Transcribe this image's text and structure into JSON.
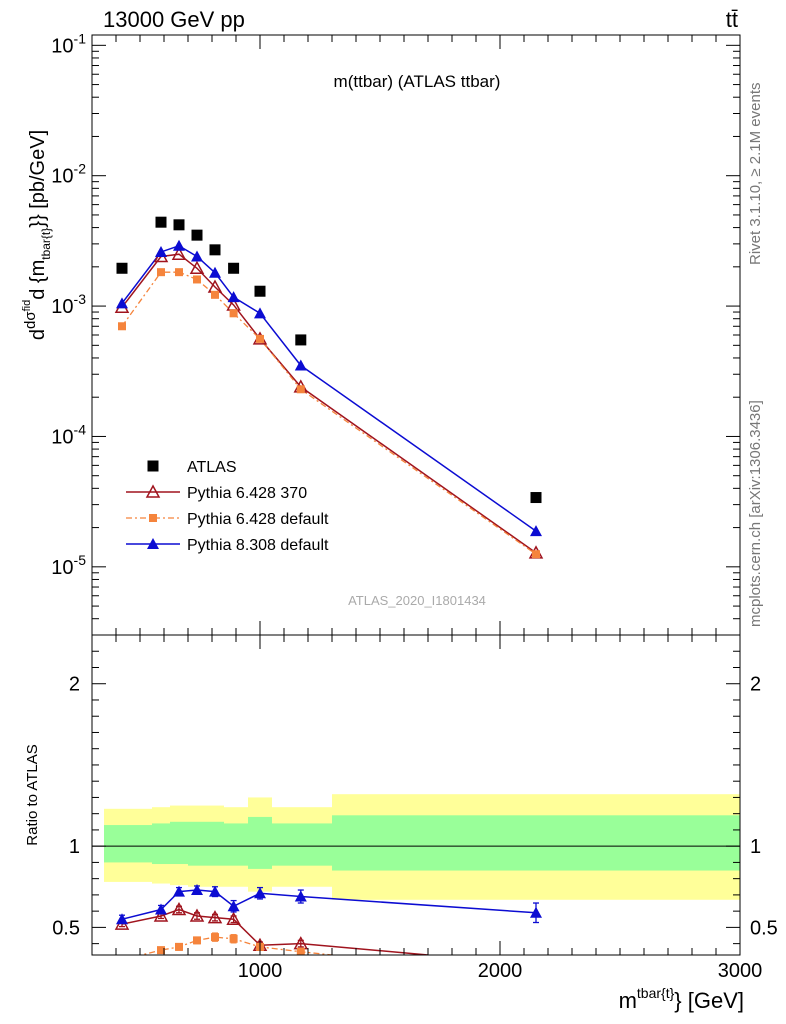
{
  "header": {
    "left": "13000 GeV pp",
    "right": "tt̄"
  },
  "side": {
    "rivet": "Rivet 3.1.10, ≥ 2.1M events",
    "site": "mcplots.cern.ch [arXiv:1306.3436]"
  },
  "plot_title": "m(ttbar) (ATLAS ttbar)",
  "watermark": "ATLAS_2020_I1801434",
  "colors": {
    "data": "#000000",
    "py6_370": "#a0141e",
    "py6_default": "#f5843c",
    "py8": "#0c0cd2",
    "band_outer": "#ffff99",
    "band_inner": "#99ff99"
  },
  "chart_data": [
    {
      "type": "scatter",
      "name": "main",
      "ylabel": "dσ^fid / d{m^{tbar{t}}} [pb/GeV]",
      "yscale": "log",
      "ylim": [
        3e-06,
        0.12
      ],
      "xlim": [
        300,
        3000
      ],
      "y_ticks": [
        {
          "value": 0.1,
          "label": "10^-1"
        },
        {
          "value": 0.01,
          "label": "10^-2"
        },
        {
          "value": 0.001,
          "label": "10^-3"
        },
        {
          "value": 0.0001,
          "label": "10^-4"
        },
        {
          "value": 1e-05,
          "label": "10^-5"
        }
      ],
      "legend_position": "bottom-left",
      "x": [
        425,
        587.5,
        662.5,
        737.5,
        812.5,
        890,
        1000,
        1170,
        2150
      ],
      "series": [
        {
          "name": "ATLAS",
          "key": "data",
          "marker": "square",
          "values": [
            0.00195,
            0.0044,
            0.0042,
            0.0035,
            0.0027,
            0.00195,
            0.0013,
            0.00055,
            3.4e-05
          ]
        },
        {
          "name": "Pythia 6.428 370",
          "key": "py6_370",
          "marker": "open-triangle",
          "values": [
            0.00098,
            0.0024,
            0.0025,
            0.00195,
            0.0014,
            0.00102,
            0.00056,
            0.00024,
            1.28e-05
          ]
        },
        {
          "name": "Pythia 6.428 default",
          "key": "py6_default",
          "marker": "small-square",
          "values": [
            0.0007,
            0.00182,
            0.00182,
            0.0016,
            0.00122,
            0.00088,
            0.00056,
            0.00023,
            1.25e-05
          ]
        },
        {
          "name": "Pythia 8.308 default",
          "key": "py8",
          "marker": "triangle",
          "values": [
            0.00105,
            0.0026,
            0.0029,
            0.0024,
            0.0018,
            0.00117,
            0.00088,
            0.00035,
            1.88e-05
          ]
        }
      ]
    },
    {
      "type": "line",
      "name": "ratio",
      "ylabel": "Ratio to ATLAS",
      "ylim": [
        0.33,
        2.3
      ],
      "xlim": [
        300,
        3000
      ],
      "xlabel": "m^{tbar{t}} [GeV]",
      "x_ticks": [
        1000,
        2000,
        3000
      ],
      "y_ticks": [
        0.5,
        1,
        2
      ],
      "bins": [
        {
          "lo": 350,
          "hi": 550,
          "outer": [
            0.78,
            1.23
          ],
          "inner": [
            0.9,
            1.13
          ]
        },
        {
          "lo": 550,
          "hi": 625,
          "outer": [
            0.77,
            1.24
          ],
          "inner": [
            0.89,
            1.14
          ]
        },
        {
          "lo": 625,
          "hi": 700,
          "outer": [
            0.76,
            1.25
          ],
          "inner": [
            0.89,
            1.15
          ]
        },
        {
          "lo": 700,
          "hi": 775,
          "outer": [
            0.75,
            1.25
          ],
          "inner": [
            0.88,
            1.15
          ]
        },
        {
          "lo": 775,
          "hi": 850,
          "outer": [
            0.75,
            1.25
          ],
          "inner": [
            0.88,
            1.15
          ]
        },
        {
          "lo": 850,
          "hi": 950,
          "outer": [
            0.75,
            1.24
          ],
          "inner": [
            0.88,
            1.14
          ]
        },
        {
          "lo": 950,
          "hi": 1050,
          "outer": [
            0.72,
            1.3
          ],
          "inner": [
            0.86,
            1.18
          ]
        },
        {
          "lo": 1050,
          "hi": 1300,
          "outer": [
            0.75,
            1.24
          ],
          "inner": [
            0.88,
            1.14
          ]
        },
        {
          "lo": 1300,
          "hi": 3000,
          "outer": [
            0.67,
            1.32
          ],
          "inner": [
            0.85,
            1.19
          ]
        }
      ],
      "series": [
        {
          "name": "Pythia 6.428 370",
          "key": "py6_370",
          "x": [
            425,
            587.5,
            662.5,
            737.5,
            812.5,
            890,
            1000,
            1170,
            1700
          ],
          "values": [
            0.52,
            0.57,
            0.61,
            0.57,
            0.56,
            0.55,
            0.39,
            0.4,
            0.33
          ],
          "errors": [
            0.015,
            0.015,
            0.02,
            0.02,
            0.02,
            0.02,
            0.02,
            0.02,
            0.0
          ],
          "marker_count": 8
        },
        {
          "name": "Pythia 6.428 default",
          "key": "py6_default",
          "x": [
            425,
            587.5,
            662.5,
            737.5,
            812.5,
            890,
            1000,
            1170,
            1500
          ],
          "values": [
            0.3,
            0.36,
            0.38,
            0.42,
            0.44,
            0.43,
            0.38,
            0.35,
            0.3
          ],
          "errors": [
            0.015,
            0.015,
            0.02,
            0.02,
            0.025,
            0.025,
            0.02,
            0.02,
            0.0
          ],
          "marker_count": 8
        },
        {
          "name": "Pythia 8.308 default",
          "key": "py8",
          "x": [
            425,
            587.5,
            662.5,
            737.5,
            812.5,
            890,
            1000,
            1170,
            2150
          ],
          "values": [
            0.55,
            0.61,
            0.72,
            0.73,
            0.72,
            0.63,
            0.71,
            0.69,
            0.59
          ],
          "errors": [
            0.025,
            0.025,
            0.025,
            0.025,
            0.03,
            0.035,
            0.035,
            0.04,
            0.06
          ],
          "marker_count": 9
        }
      ]
    }
  ]
}
